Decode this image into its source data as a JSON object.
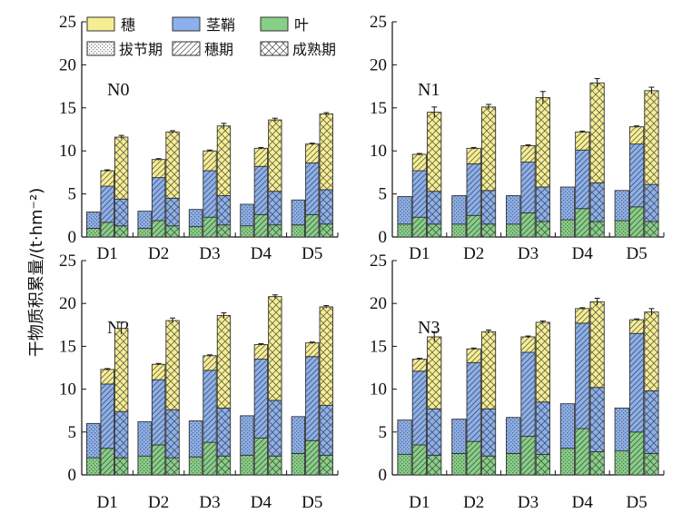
{
  "ylabel": "干物质积累量/(t·hm⁻²)",
  "legend": {
    "organs": [
      {
        "name": "穗",
        "color": "#f6ee93"
      },
      {
        "name": "茎鞘",
        "color": "#8cb0ec"
      },
      {
        "name": "叶",
        "color": "#88cf88"
      }
    ],
    "stages": [
      {
        "name": "拔节期",
        "pattern": "dots"
      },
      {
        "name": "穗期",
        "pattern": "diagonal"
      },
      {
        "name": "成熟期",
        "pattern": "crosshatch"
      }
    ]
  },
  "chart_data": [
    {
      "type": "bar",
      "panel": "N0",
      "categories": [
        "D1",
        "D2",
        "D3",
        "D4",
        "D5"
      ],
      "ylim": [
        0,
        25
      ],
      "yticks": [
        0,
        5,
        10,
        15,
        20,
        25
      ],
      "stages": [
        "拔节期",
        "穗期",
        "成熟期"
      ],
      "series": [
        {
          "name": "叶",
          "values": [
            [
              1.0,
              1.7,
              1.3
            ],
            [
              1.0,
              1.9,
              1.3
            ],
            [
              1.2,
              2.3,
              1.4
            ],
            [
              1.3,
              2.6,
              1.4
            ],
            [
              1.4,
              2.6,
              1.5
            ]
          ]
        },
        {
          "name": "茎鞘",
          "values": [
            [
              1.9,
              4.2,
              3.1
            ],
            [
              2.0,
              5.0,
              3.2
            ],
            [
              2.0,
              5.4,
              3.4
            ],
            [
              2.5,
              5.6,
              3.9
            ],
            [
              2.9,
              6.0,
              4.0
            ]
          ]
        },
        {
          "name": "穗",
          "values": [
            [
              0,
              1.8,
              7.2
            ],
            [
              0,
              2.1,
              7.7
            ],
            [
              0,
              2.3,
              8.1
            ],
            [
              0,
              2.1,
              8.3
            ],
            [
              0,
              2.2,
              8.8
            ]
          ]
        }
      ],
      "errors": [
        [
          0,
          0.1,
          0.2
        ],
        [
          0,
          0.1,
          0.15
        ],
        [
          0,
          0.1,
          0.3
        ],
        [
          0,
          0.1,
          0.2
        ],
        [
          0,
          0.1,
          0.15
        ]
      ]
    },
    {
      "type": "bar",
      "panel": "N1",
      "categories": [
        "D1",
        "D2",
        "D3",
        "D4",
        "D5"
      ],
      "ylim": [
        0,
        25
      ],
      "yticks": [
        0,
        5,
        10,
        15,
        20,
        25
      ],
      "stages": [
        "拔节期",
        "穗期",
        "成熟期"
      ],
      "series": [
        {
          "name": "叶",
          "values": [
            [
              1.5,
              2.3,
              1.5
            ],
            [
              1.5,
              2.5,
              1.5
            ],
            [
              1.5,
              2.8,
              1.8
            ],
            [
              2.0,
              3.3,
              1.8
            ],
            [
              1.9,
              3.5,
              1.8
            ]
          ]
        },
        {
          "name": "茎鞘",
          "values": [
            [
              3.2,
              5.4,
              3.8
            ],
            [
              3.3,
              6.0,
              3.9
            ],
            [
              3.3,
              5.9,
              4.0
            ],
            [
              3.8,
              6.8,
              4.5
            ],
            [
              3.5,
              7.3,
              4.3
            ]
          ]
        },
        {
          "name": "穗",
          "values": [
            [
              0,
              1.9,
              9.2
            ],
            [
              0,
              1.8,
              9.7
            ],
            [
              0,
              1.9,
              10.4
            ],
            [
              0,
              2.1,
              11.6
            ],
            [
              0,
              2.0,
              10.9
            ]
          ]
        }
      ],
      "errors": [
        [
          0,
          0.1,
          0.6
        ],
        [
          0,
          0.1,
          0.3
        ],
        [
          0,
          0.1,
          0.7
        ],
        [
          0,
          0.1,
          0.5
        ],
        [
          0,
          0.1,
          0.4
        ]
      ]
    },
    {
      "type": "bar",
      "panel": "N2",
      "categories": [
        "D1",
        "D2",
        "D3",
        "D4",
        "D5"
      ],
      "ylim": [
        0,
        25
      ],
      "yticks": [
        0,
        5,
        10,
        15,
        20,
        25
      ],
      "stages": [
        "拔节期",
        "穗期",
        "成熟期"
      ],
      "series": [
        {
          "name": "叶",
          "values": [
            [
              2.0,
              3.1,
              2.0
            ],
            [
              2.2,
              3.5,
              2.0
            ],
            [
              2.1,
              3.8,
              2.2
            ],
            [
              2.3,
              4.3,
              2.2
            ],
            [
              2.5,
              4.0,
              2.3
            ]
          ]
        },
        {
          "name": "茎鞘",
          "values": [
            [
              4.0,
              7.5,
              5.4
            ],
            [
              4.0,
              7.6,
              5.6
            ],
            [
              4.2,
              8.4,
              5.6
            ],
            [
              4.6,
              9.2,
              6.5
            ],
            [
              4.3,
              9.8,
              5.8
            ]
          ]
        },
        {
          "name": "穗",
          "values": [
            [
              0,
              1.7,
              9.7
            ],
            [
              0,
              1.8,
              10.4
            ],
            [
              0,
              1.7,
              10.8
            ],
            [
              0,
              1.7,
              12.1
            ],
            [
              0,
              1.6,
              11.5
            ]
          ]
        }
      ],
      "errors": [
        [
          0,
          0.1,
          0.7
        ],
        [
          0,
          0.1,
          0.3
        ],
        [
          0,
          0.1,
          0.3
        ],
        [
          0,
          0.1,
          0.2
        ],
        [
          0,
          0.1,
          0.15
        ]
      ]
    },
    {
      "type": "bar",
      "panel": "N3",
      "categories": [
        "D1",
        "D2",
        "D3",
        "D4",
        "D5"
      ],
      "ylim": [
        0,
        25
      ],
      "yticks": [
        0,
        5,
        10,
        15,
        20,
        25
      ],
      "stages": [
        "拔节期",
        "穗期",
        "成熟期"
      ],
      "series": [
        {
          "name": "叶",
          "values": [
            [
              2.4,
              3.5,
              2.3
            ],
            [
              2.5,
              3.9,
              2.2
            ],
            [
              2.5,
              4.5,
              2.4
            ],
            [
              3.1,
              5.4,
              2.7
            ],
            [
              2.8,
              5.0,
              2.5
            ]
          ]
        },
        {
          "name": "茎鞘",
          "values": [
            [
              4.0,
              8.6,
              5.4
            ],
            [
              4.0,
              9.2,
              5.5
            ],
            [
              4.2,
              9.8,
              6.1
            ],
            [
              5.2,
              12.3,
              7.5
            ],
            [
              5.0,
              11.5,
              7.3
            ]
          ]
        },
        {
          "name": "穗",
          "values": [
            [
              0,
              1.4,
              8.4
            ],
            [
              0,
              1.6,
              9.0
            ],
            [
              0,
              1.8,
              9.3
            ],
            [
              0,
              1.7,
              10.0
            ],
            [
              0,
              1.6,
              9.2
            ]
          ]
        }
      ],
      "errors": [
        [
          0,
          0.1,
          0.6
        ],
        [
          0,
          0.1,
          0.2
        ],
        [
          0,
          0.1,
          0.15
        ],
        [
          0,
          0.1,
          0.4
        ],
        [
          0,
          0.1,
          0.4
        ]
      ]
    }
  ]
}
